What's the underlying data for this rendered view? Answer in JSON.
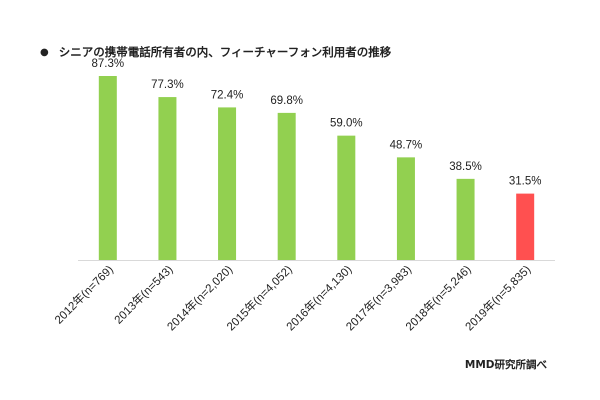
{
  "chart_data": {
    "type": "bar",
    "title": "シニアの携帯電話所有者の内、フィーチャーフォン利用者の推移",
    "title_bullet": "●",
    "categories": [
      "2012年(n=769)",
      "2013年(n=543)",
      "2014年(n=2,020)",
      "2015年(n=4,052)",
      "2016年(n=4,130)",
      "2017年(n=3,983)",
      "2018年(n=5,246)",
      "2019年(n=5,835)"
    ],
    "values": [
      87.3,
      77.3,
      72.4,
      69.8,
      59.0,
      48.7,
      38.5,
      31.5
    ],
    "value_labels": [
      "87.3%",
      "77.3%",
      "72.4%",
      "69.8%",
      "59.0%",
      "48.7%",
      "38.5%",
      "31.5%"
    ],
    "ylim": [
      0,
      100
    ],
    "grid": false,
    "colors": {
      "bar": "#92d050",
      "highlight_bar": "#ff5050",
      "axis": "#d9d9d9"
    },
    "highlight_index": 7,
    "source_note": "MMD研究所調べ"
  }
}
